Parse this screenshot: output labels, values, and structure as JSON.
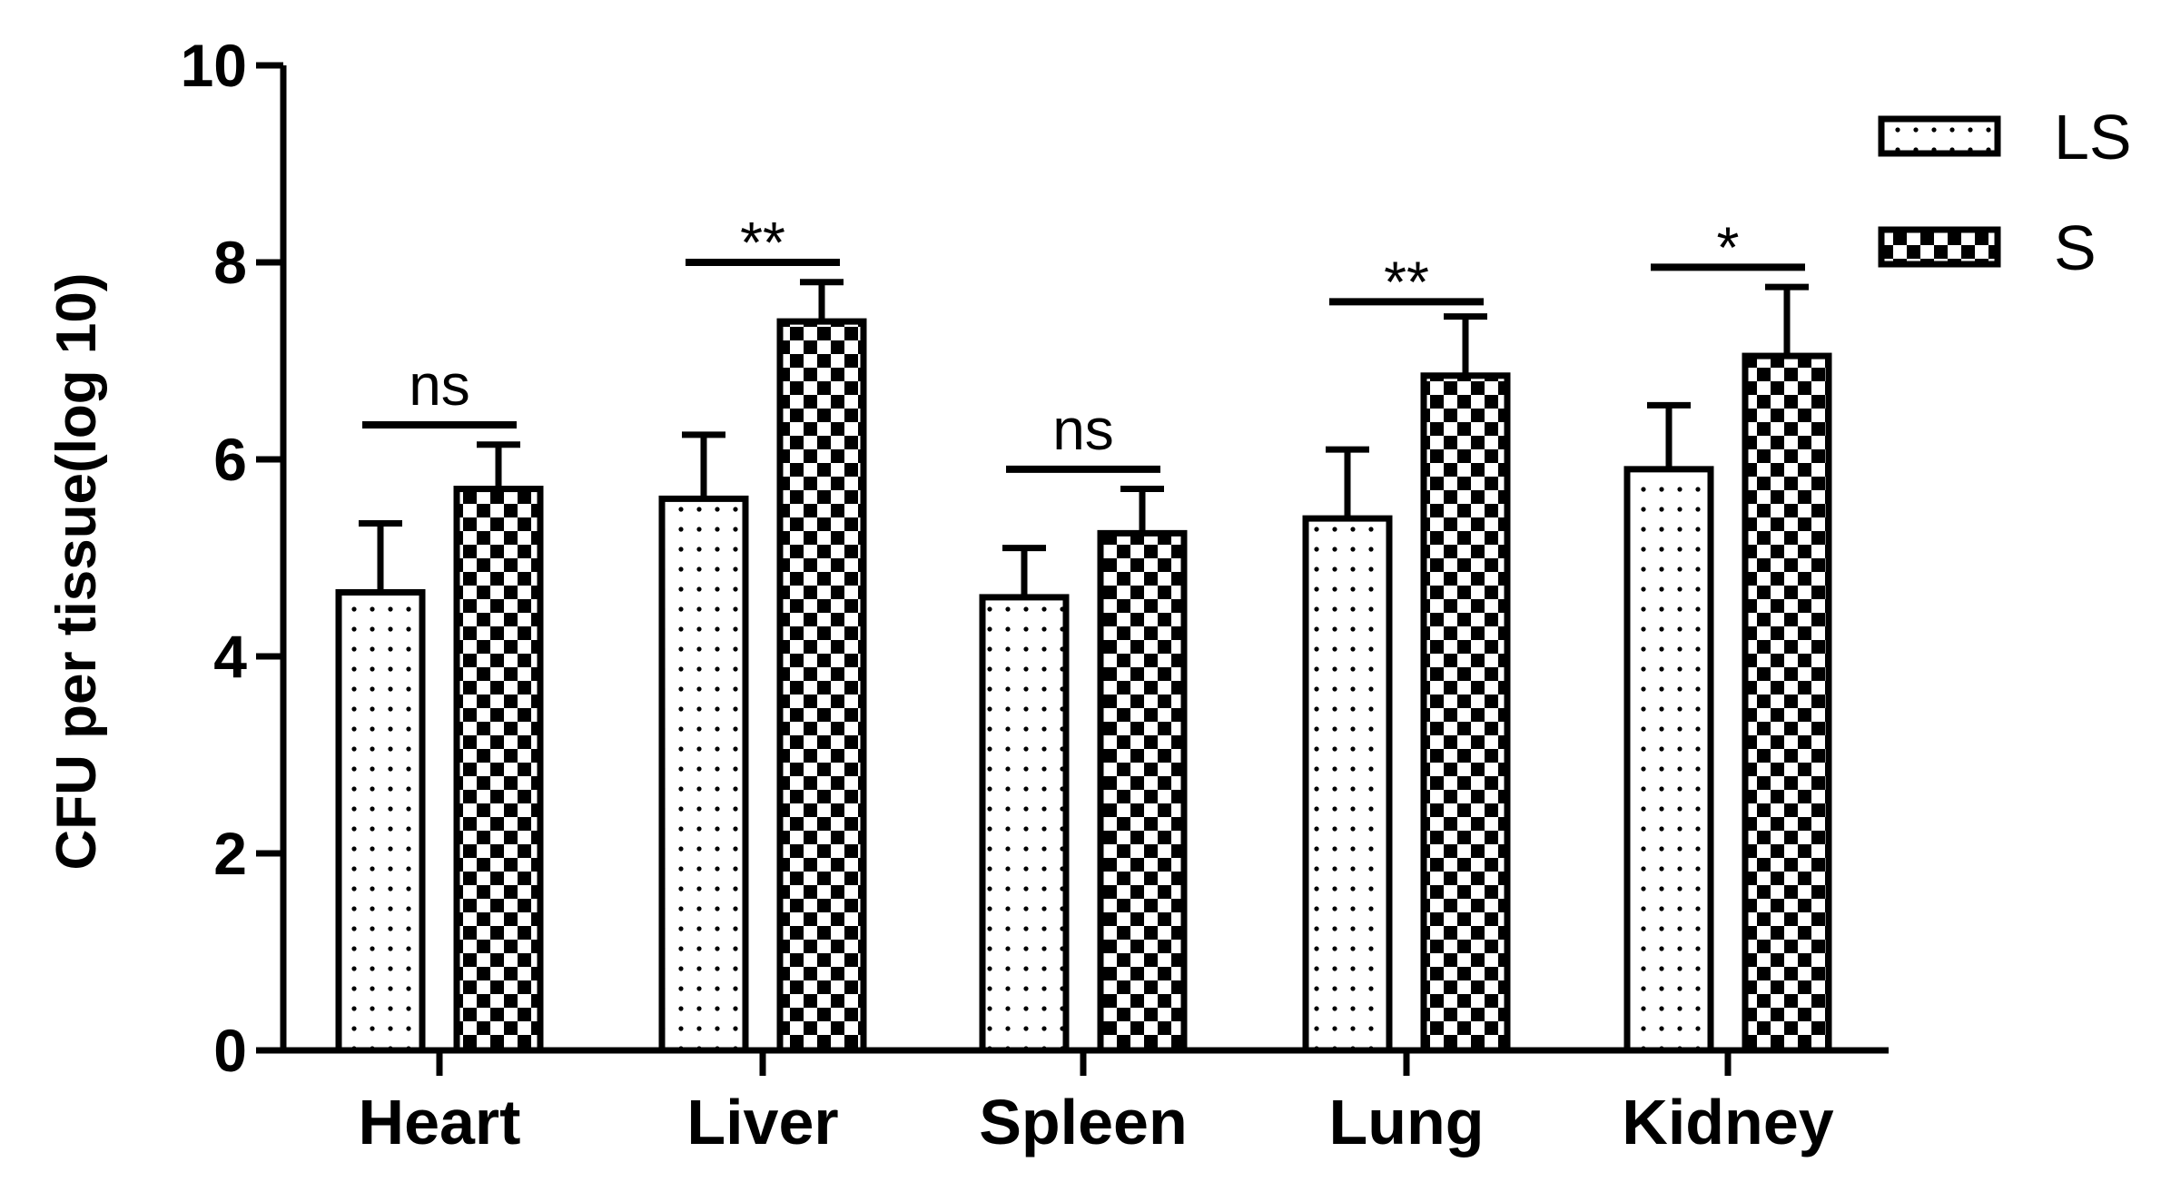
{
  "chart_data": {
    "type": "bar",
    "title": "",
    "xlabel": "",
    "ylabel": "CFU per tissue(log 10)",
    "ylim": [
      0,
      10
    ],
    "yticks": [
      0,
      2,
      4,
      6,
      8,
      10
    ],
    "categories": [
      "Heart",
      "Liver",
      "Spleen",
      "Lung",
      "Kidney"
    ],
    "series": [
      {
        "name": "LS",
        "pattern": "dots",
        "values": [
          4.65,
          5.6,
          4.6,
          5.4,
          5.9
        ],
        "errors": [
          0.7,
          0.65,
          0.5,
          0.7,
          0.65
        ]
      },
      {
        "name": "S",
        "pattern": "checker",
        "values": [
          5.7,
          7.4,
          5.25,
          6.85,
          7.05
        ],
        "errors": [
          0.45,
          0.4,
          0.45,
          0.6,
          0.7
        ]
      }
    ],
    "significance": [
      {
        "category": "Heart",
        "label": "ns",
        "level": 6.35
      },
      {
        "category": "Liver",
        "label": "**",
        "level": 8.0
      },
      {
        "category": "Spleen",
        "label": "ns",
        "level": 5.9
      },
      {
        "category": "Lung",
        "label": "**",
        "level": 7.6
      },
      {
        "category": "Kidney",
        "label": "*",
        "level": 7.95
      }
    ],
    "legend": {
      "position": "top-right",
      "entries": [
        "LS",
        "S"
      ]
    },
    "grid": false
  }
}
